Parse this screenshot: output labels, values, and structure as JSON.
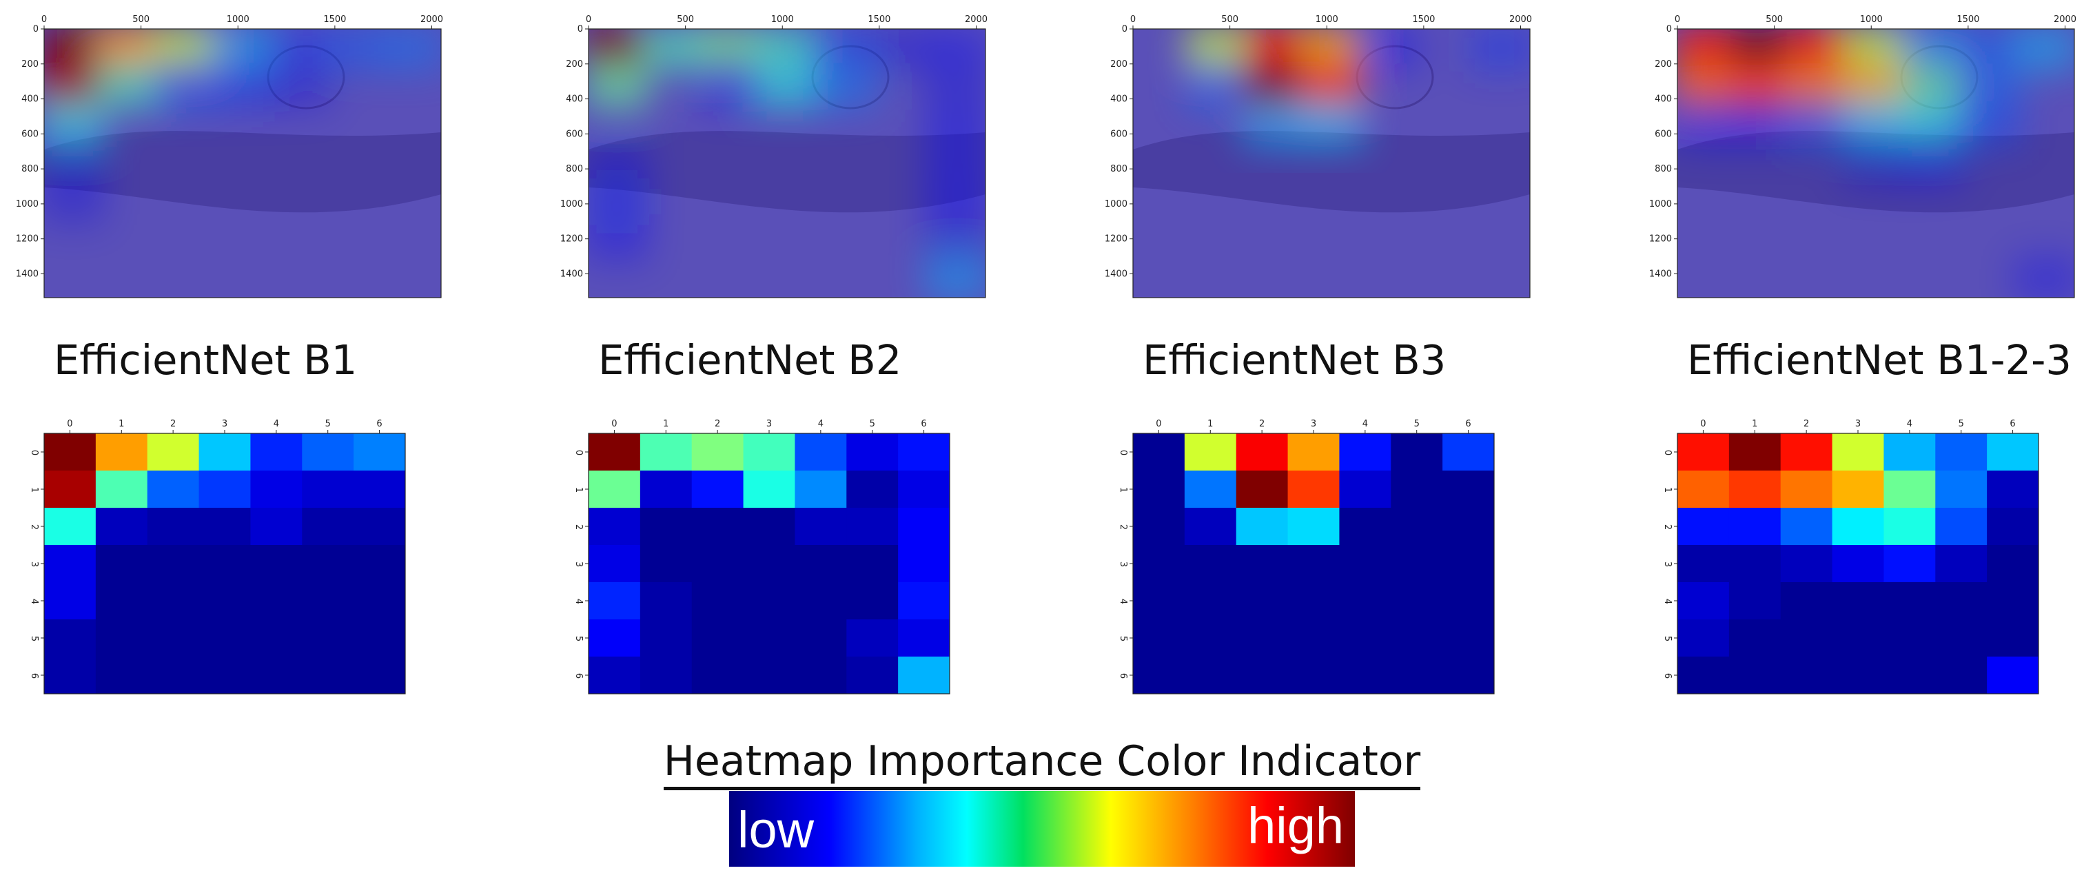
{
  "chart_data": [
    {
      "type": "heatmap",
      "title": "EfficientNet B1",
      "overlay": {
        "x_ticks": [
          "0",
          "500",
          "1000",
          "1500",
          "2000"
        ],
        "y_ticks": [
          "0",
          "200",
          "400",
          "600",
          "800",
          "1000",
          "1200",
          "1400"
        ],
        "xlim": [
          0,
          2048
        ],
        "ylim": [
          0,
          1536
        ]
      },
      "grid": {
        "x_ticks": [
          "0",
          "1",
          "2",
          "3",
          "4",
          "5",
          "6"
        ],
        "y_ticks": [
          "0",
          "1",
          "2",
          "3",
          "4",
          "5",
          "6"
        ],
        "values": [
          [
            1.0,
            0.72,
            0.58,
            0.32,
            0.16,
            0.22,
            0.25
          ],
          [
            0.96,
            0.45,
            0.22,
            0.18,
            0.1,
            0.08,
            0.08
          ],
          [
            0.4,
            0.06,
            0.04,
            0.04,
            0.08,
            0.04,
            0.04
          ],
          [
            0.1,
            0.02,
            0.02,
            0.02,
            0.02,
            0.02,
            0.02
          ],
          [
            0.1,
            0.02,
            0.02,
            0.02,
            0.02,
            0.02,
            0.02
          ],
          [
            0.04,
            0.02,
            0.02,
            0.02,
            0.02,
            0.02,
            0.02
          ],
          [
            0.04,
            0.02,
            0.02,
            0.02,
            0.02,
            0.02,
            0.02
          ]
        ]
      }
    },
    {
      "type": "heatmap",
      "title": "EfficientNet B2",
      "overlay": {
        "x_ticks": [
          "0",
          "500",
          "1000",
          "1500",
          "2000"
        ],
        "y_ticks": [
          "0",
          "200",
          "400",
          "600",
          "800",
          "1000",
          "1200",
          "1400"
        ],
        "xlim": [
          0,
          2048
        ],
        "ylim": [
          0,
          1536
        ]
      },
      "grid": {
        "x_ticks": [
          "0",
          "1",
          "2",
          "3",
          "4",
          "5",
          "6"
        ],
        "y_ticks": [
          "0",
          "1",
          "2",
          "3",
          "4",
          "5",
          "6"
        ],
        "values": [
          [
            1.0,
            0.45,
            0.5,
            0.44,
            0.2,
            0.1,
            0.14
          ],
          [
            0.48,
            0.08,
            0.14,
            0.4,
            0.26,
            0.04,
            0.1
          ],
          [
            0.08,
            0.02,
            0.02,
            0.02,
            0.06,
            0.06,
            0.12
          ],
          [
            0.1,
            0.02,
            0.02,
            0.02,
            0.02,
            0.02,
            0.12
          ],
          [
            0.16,
            0.04,
            0.02,
            0.02,
            0.02,
            0.02,
            0.14
          ],
          [
            0.12,
            0.04,
            0.02,
            0.02,
            0.02,
            0.06,
            0.1
          ],
          [
            0.06,
            0.04,
            0.02,
            0.02,
            0.02,
            0.04,
            0.3
          ]
        ]
      }
    },
    {
      "type": "heatmap",
      "title": "EfficientNet B3",
      "overlay": {
        "x_ticks": [
          "0",
          "500",
          "1000",
          "1500",
          "2000"
        ],
        "y_ticks": [
          "0",
          "200",
          "400",
          "600",
          "800",
          "1000",
          "1200",
          "1400"
        ],
        "xlim": [
          0,
          2048
        ],
        "ylim": [
          0,
          1536
        ]
      },
      "grid": {
        "x_ticks": [
          "0",
          "1",
          "2",
          "3",
          "4",
          "5",
          "6"
        ],
        "y_ticks": [
          "0",
          "1",
          "2",
          "3",
          "4",
          "5",
          "6"
        ],
        "values": [
          [
            0.02,
            0.58,
            0.88,
            0.72,
            0.14,
            0.02,
            0.18
          ],
          [
            0.02,
            0.24,
            1.0,
            0.82,
            0.08,
            0.02,
            0.02
          ],
          [
            0.02,
            0.06,
            0.32,
            0.34,
            0.02,
            0.02,
            0.02
          ],
          [
            0.02,
            0.02,
            0.02,
            0.02,
            0.02,
            0.02,
            0.02
          ],
          [
            0.02,
            0.02,
            0.02,
            0.02,
            0.02,
            0.02,
            0.02
          ],
          [
            0.02,
            0.02,
            0.02,
            0.02,
            0.02,
            0.02,
            0.02
          ],
          [
            0.02,
            0.02,
            0.02,
            0.02,
            0.02,
            0.02,
            0.02
          ]
        ]
      }
    },
    {
      "type": "heatmap",
      "title": "EfficientNet B1-2-3",
      "overlay": {
        "x_ticks": [
          "0",
          "500",
          "1000",
          "1500",
          "2000"
        ],
        "y_ticks": [
          "0",
          "200",
          "400",
          "600",
          "800",
          "1000",
          "1200",
          "1400"
        ],
        "xlim": [
          0,
          2048
        ],
        "ylim": [
          0,
          1536
        ]
      },
      "grid": {
        "x_ticks": [
          "0",
          "1",
          "2",
          "3",
          "4",
          "5",
          "6"
        ],
        "y_ticks": [
          "0",
          "1",
          "2",
          "3",
          "4",
          "5",
          "6"
        ],
        "values": [
          [
            0.86,
            1.0,
            0.86,
            0.58,
            0.3,
            0.22,
            0.32
          ],
          [
            0.78,
            0.82,
            0.76,
            0.7,
            0.48,
            0.24,
            0.06
          ],
          [
            0.14,
            0.14,
            0.22,
            0.36,
            0.4,
            0.2,
            0.04
          ],
          [
            0.04,
            0.04,
            0.06,
            0.1,
            0.14,
            0.06,
            0.02
          ],
          [
            0.08,
            0.04,
            0.02,
            0.02,
            0.02,
            0.02,
            0.02
          ],
          [
            0.06,
            0.02,
            0.02,
            0.02,
            0.02,
            0.02,
            0.02
          ],
          [
            0.02,
            0.02,
            0.02,
            0.02,
            0.02,
            0.02,
            0.12
          ]
        ]
      }
    }
  ],
  "legend": {
    "title": "Heatmap Importance Color Indicator",
    "low_label": "low",
    "high_label": "high"
  },
  "colors": {
    "low": "#000080",
    "high": "#800000",
    "tissue_base": "#5a50b8"
  }
}
